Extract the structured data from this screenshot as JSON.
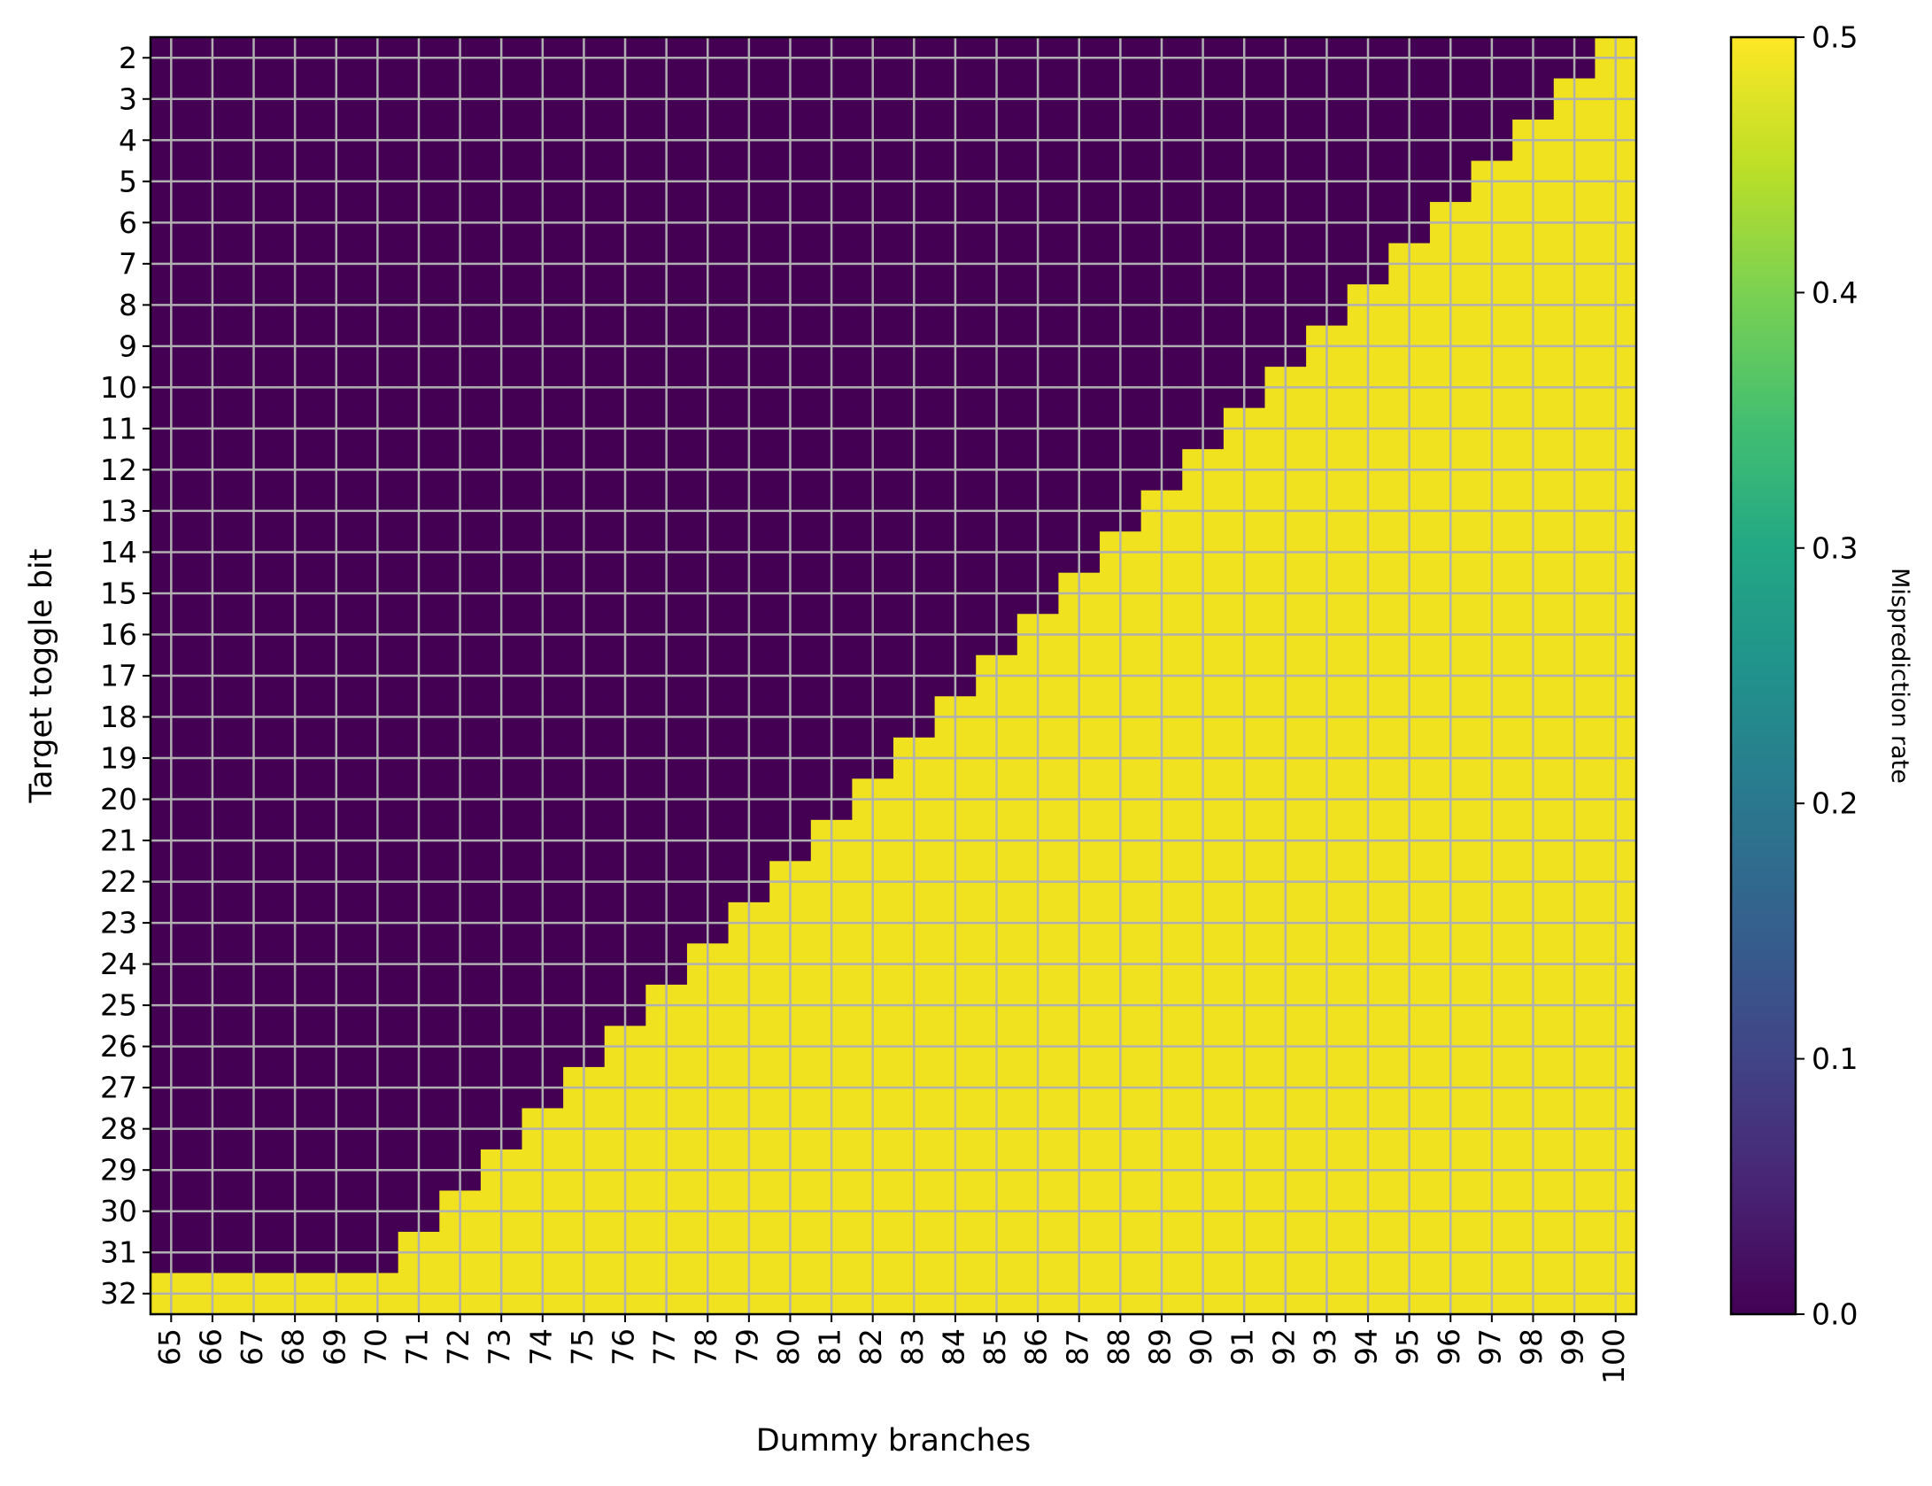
{
  "chart_data": {
    "type": "heatmap",
    "title": "",
    "xlabel": "Dummy branches",
    "ylabel": "Target toggle bit",
    "x": [
      65,
      66,
      67,
      68,
      69,
      70,
      71,
      72,
      73,
      74,
      75,
      76,
      77,
      78,
      79,
      80,
      81,
      82,
      83,
      84,
      85,
      86,
      87,
      88,
      89,
      90,
      91,
      92,
      93,
      94,
      95,
      96,
      97,
      98,
      99,
      100
    ],
    "y": [
      2,
      3,
      4,
      5,
      6,
      7,
      8,
      9,
      10,
      11,
      12,
      13,
      14,
      15,
      16,
      17,
      18,
      19,
      20,
      21,
      22,
      23,
      24,
      25,
      26,
      27,
      28,
      29,
      30,
      31,
      32
    ],
    "value_rule": "Misprediction rate is 0.5 where Dummy branches + Target toggle bit >= 102, otherwise 0.0 (row 32 is 0.5 for all columns)",
    "threshold_sum": 102,
    "low_value": 0.0,
    "high_value": 0.5,
    "colorbar": {
      "label": "Misprediction rate",
      "min": 0.0,
      "max": 0.5,
      "ticks": [
        "0.0",
        "0.1",
        "0.2",
        "0.3",
        "0.4",
        "0.5"
      ],
      "colormap": "viridis"
    },
    "grid": true,
    "colors": {
      "low": "#440154",
      "high": "#f0e21f",
      "grid": "#b0b0b0"
    }
  }
}
